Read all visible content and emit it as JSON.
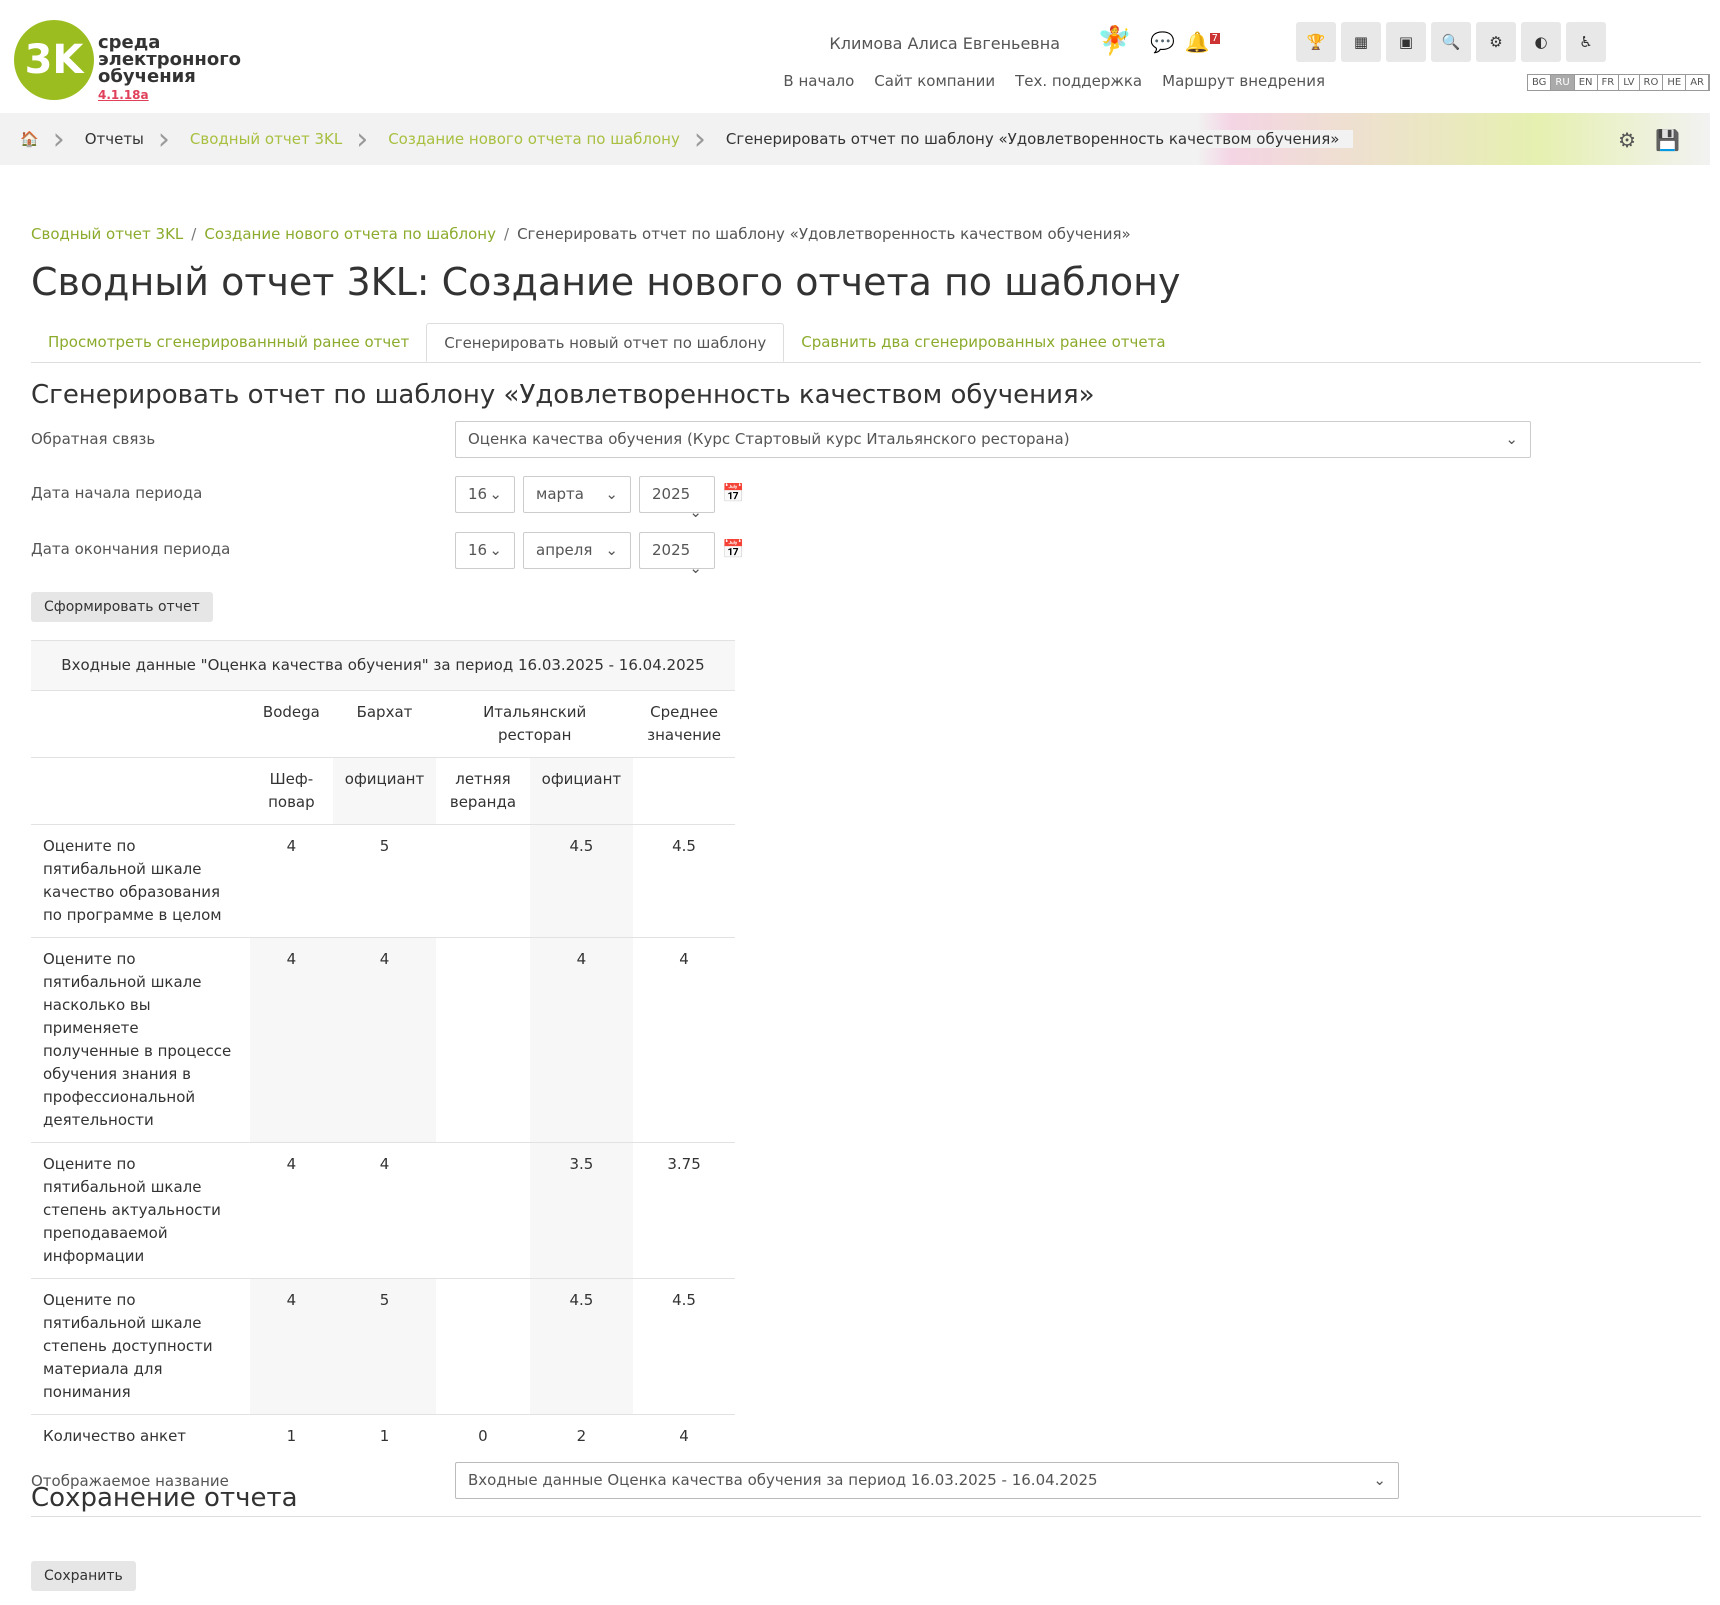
{
  "header": {
    "logo": {
      "mark": "3K",
      "line1": "среда",
      "line2": "электронного",
      "line3": "обучения",
      "version": "4.1.18a"
    },
    "user": "Климова Алиса Евгеньевна",
    "notifications": "7",
    "nav": [
      "В начало",
      "Сайт компании",
      "Тех. поддержка",
      "Маршрут внедрения"
    ],
    "languages": [
      "BG",
      "RU",
      "EN",
      "FR",
      "LV",
      "RO",
      "HE",
      "AR"
    ],
    "active_language": "RU"
  },
  "breadcrumb_bar": [
    "Отчеты",
    "Сводный отчет 3KL",
    "Создание нового отчета по шаблону",
    "Сгенерировать отчет по шаблону «Удовлетворенность качеством обучения»"
  ],
  "breadcrumb": [
    "Сводный отчет 3KL",
    "Создание нового отчета по шаблону",
    "Сгенерировать отчет по шаблону «Удовлетворенность качеством обучения»"
  ],
  "page_title": "Сводный отчет 3KL: Создание нового отчета по шаблону",
  "tabs": [
    "Просмотреть сгенерированнный ранее отчет",
    "Сгенерировать новый отчет по шаблону",
    "Сравнить два сгенерированных ранее отчета"
  ],
  "active_tab": "Сгенерировать новый отчет по шаблону",
  "form": {
    "heading": "Сгенерировать отчет по шаблону «Удовлетворенность качеством обучения»",
    "feedback": {
      "label": "Обратная связь",
      "value": "Оценка качества обучения (Курс Стартовый курс Итальянского ресторана)"
    },
    "start": {
      "label": "Дата начала периода",
      "day": "16",
      "month": "марта",
      "year": "2025"
    },
    "end": {
      "label": "Дата окончания периода",
      "day": "16",
      "month": "апреля",
      "year": "2025"
    },
    "button": "Сформировать отчет"
  },
  "table": {
    "caption": "Входные данные \"Оценка качества обучения\" за период 16.03.2025 - 16.04.2025",
    "groups": [
      {
        "label": "Bodega",
        "span": 1
      },
      {
        "label": "Бархат",
        "span": 1
      },
      {
        "label": "Итальянский ресторан",
        "span": 2
      },
      {
        "label": "Среднее значение",
        "span": 1
      }
    ],
    "roles": [
      "Шеф-повар",
      "официант",
      "летняя веранда",
      "официант"
    ],
    "rows": [
      {
        "question": "Оцените по пятибальной шкале качество образования по программе в целом",
        "values": [
          4,
          5,
          null,
          4.5,
          4.5
        ]
      },
      {
        "question": "Оцените по пятибальной шкале насколько вы применяете полученные в процессе обучения знания в профессиональной деятельности",
        "values": [
          4,
          4,
          null,
          4,
          4
        ]
      },
      {
        "question": "Оцените по пятибальной шкале степень актуальности преподаваемой информации",
        "values": [
          4,
          4,
          null,
          3.5,
          3.75
        ]
      },
      {
        "question": "Оцените по пятибальной шкале степень доступности материала для понимания",
        "values": [
          4,
          5,
          null,
          4.5,
          4.5
        ]
      }
    ],
    "count_row": {
      "label": "Количество анкет",
      "values": [
        1,
        1,
        0,
        2,
        4
      ]
    }
  },
  "save": {
    "heading": "Сохранение отчета",
    "label": "Отображаемое название",
    "value": "Входные данные Оценка качества обучения за период 16.03.2025 - 16.04.2025",
    "button": "Сохранить"
  }
}
